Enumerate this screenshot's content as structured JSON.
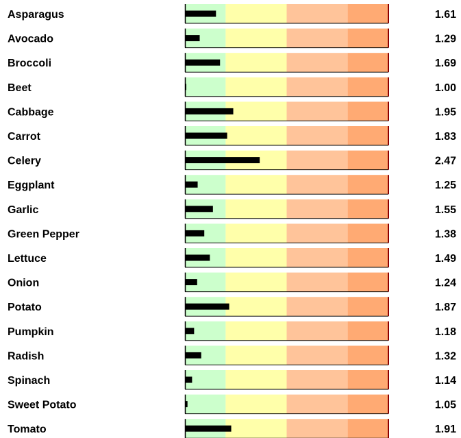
{
  "chart_data": {
    "type": "bar",
    "orientation": "horizontal",
    "subtype": "bullet",
    "categories": [
      "Asparagus",
      "Avocado",
      "Broccoli",
      "Beet",
      "Cabbage",
      "Carrot",
      "Celery",
      "Eggplant",
      "Garlic",
      "Green Pepper",
      "Lettuce",
      "Onion",
      "Potato",
      "Pumpkin",
      "Radish",
      "Spinach",
      "Sweet Potato",
      "Tomato"
    ],
    "values": [
      1.61,
      1.29,
      1.69,
      1.0,
      1.95,
      1.83,
      2.47,
      1.25,
      1.55,
      1.38,
      1.49,
      1.24,
      1.87,
      1.18,
      1.32,
      1.14,
      1.05,
      1.91
    ],
    "value_labels": [
      "1.61",
      "1.29",
      "1.69",
      "1.00",
      "1.95",
      "1.83",
      "2.47",
      "1.25",
      "1.55",
      "1.38",
      "1.49",
      "1.24",
      "1.87",
      "1.18",
      "1.32",
      "1.14",
      "1.05",
      "1.91"
    ],
    "xlim": [
      1.0,
      5.0
    ],
    "bands": [
      {
        "from": 1.0,
        "to": 1.8,
        "color": "#ccffcc"
      },
      {
        "from": 1.8,
        "to": 3.0,
        "color": "#ffffaa"
      },
      {
        "from": 3.0,
        "to": 4.2,
        "color": "#ffc49a"
      },
      {
        "from": 4.2,
        "to": 5.0,
        "color": "#ffaa73"
      }
    ],
    "bar_color": "#000000",
    "end_marker_color": "#8b0000",
    "grid": false,
    "legend": "none",
    "title": "",
    "xlabel": "",
    "ylabel": ""
  }
}
